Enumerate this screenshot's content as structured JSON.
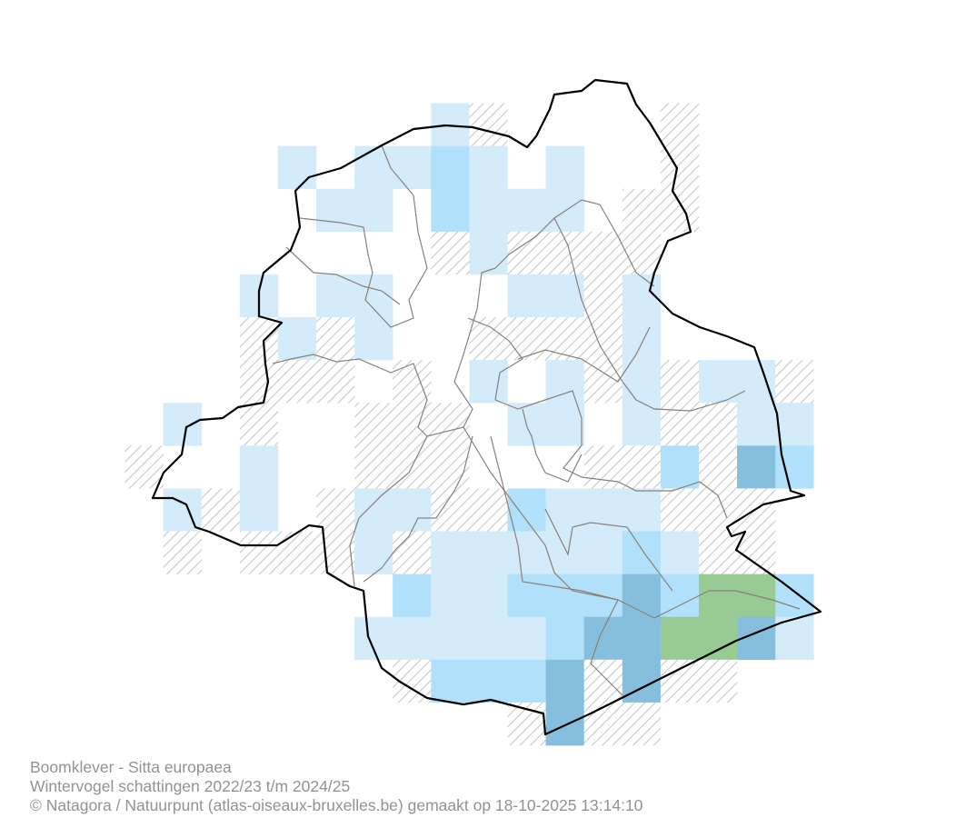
{
  "map": {
    "cell_classes": {
      ".": {
        "fill": null
      },
      "h": {
        "fill": "hatch",
        "hatch_color": "#c8c8c8"
      },
      "1": {
        "fill": "#d4ebfa"
      },
      "2": {
        "fill": "#b1e1fa"
      },
      "3": {
        "fill": "#86bfdd"
      },
      "4": {
        "fill": "#98ca94"
      }
    },
    "grid_rows": [
      "........1h....h...",
      "....1.1121.1..h...",
      ".....11.2111.hh...",
      "........h1hhhh....",
      "...1.11...11h1....",
      "...h1h1..hhhh1....",
      "...hhh.h.1.1h1h11h",
      ".1.h..hhh.11.1hh11",
      "h..1..hhh...hh2h32",
      ".1h1.h11hh2111hhh.",
      ".h.hhh1h1111121hh.",
      ".......21122232442",
      "......111112334431",
      ".......h2223h3hh..",
      "..........h3hh...."
    ],
    "border_color": "#000000",
    "commune_line_color": "#8a807a"
  },
  "caption": {
    "line1": "Boomklever - Sitta europaea",
    "line2": "Wintervogel schattingen 2022/23 t/m 2024/25",
    "line3": "© Natagora / Natuurpunt (atlas-oiseaux-bruxelles.be) gemaakt op 18-10-2025 13:14:10"
  }
}
